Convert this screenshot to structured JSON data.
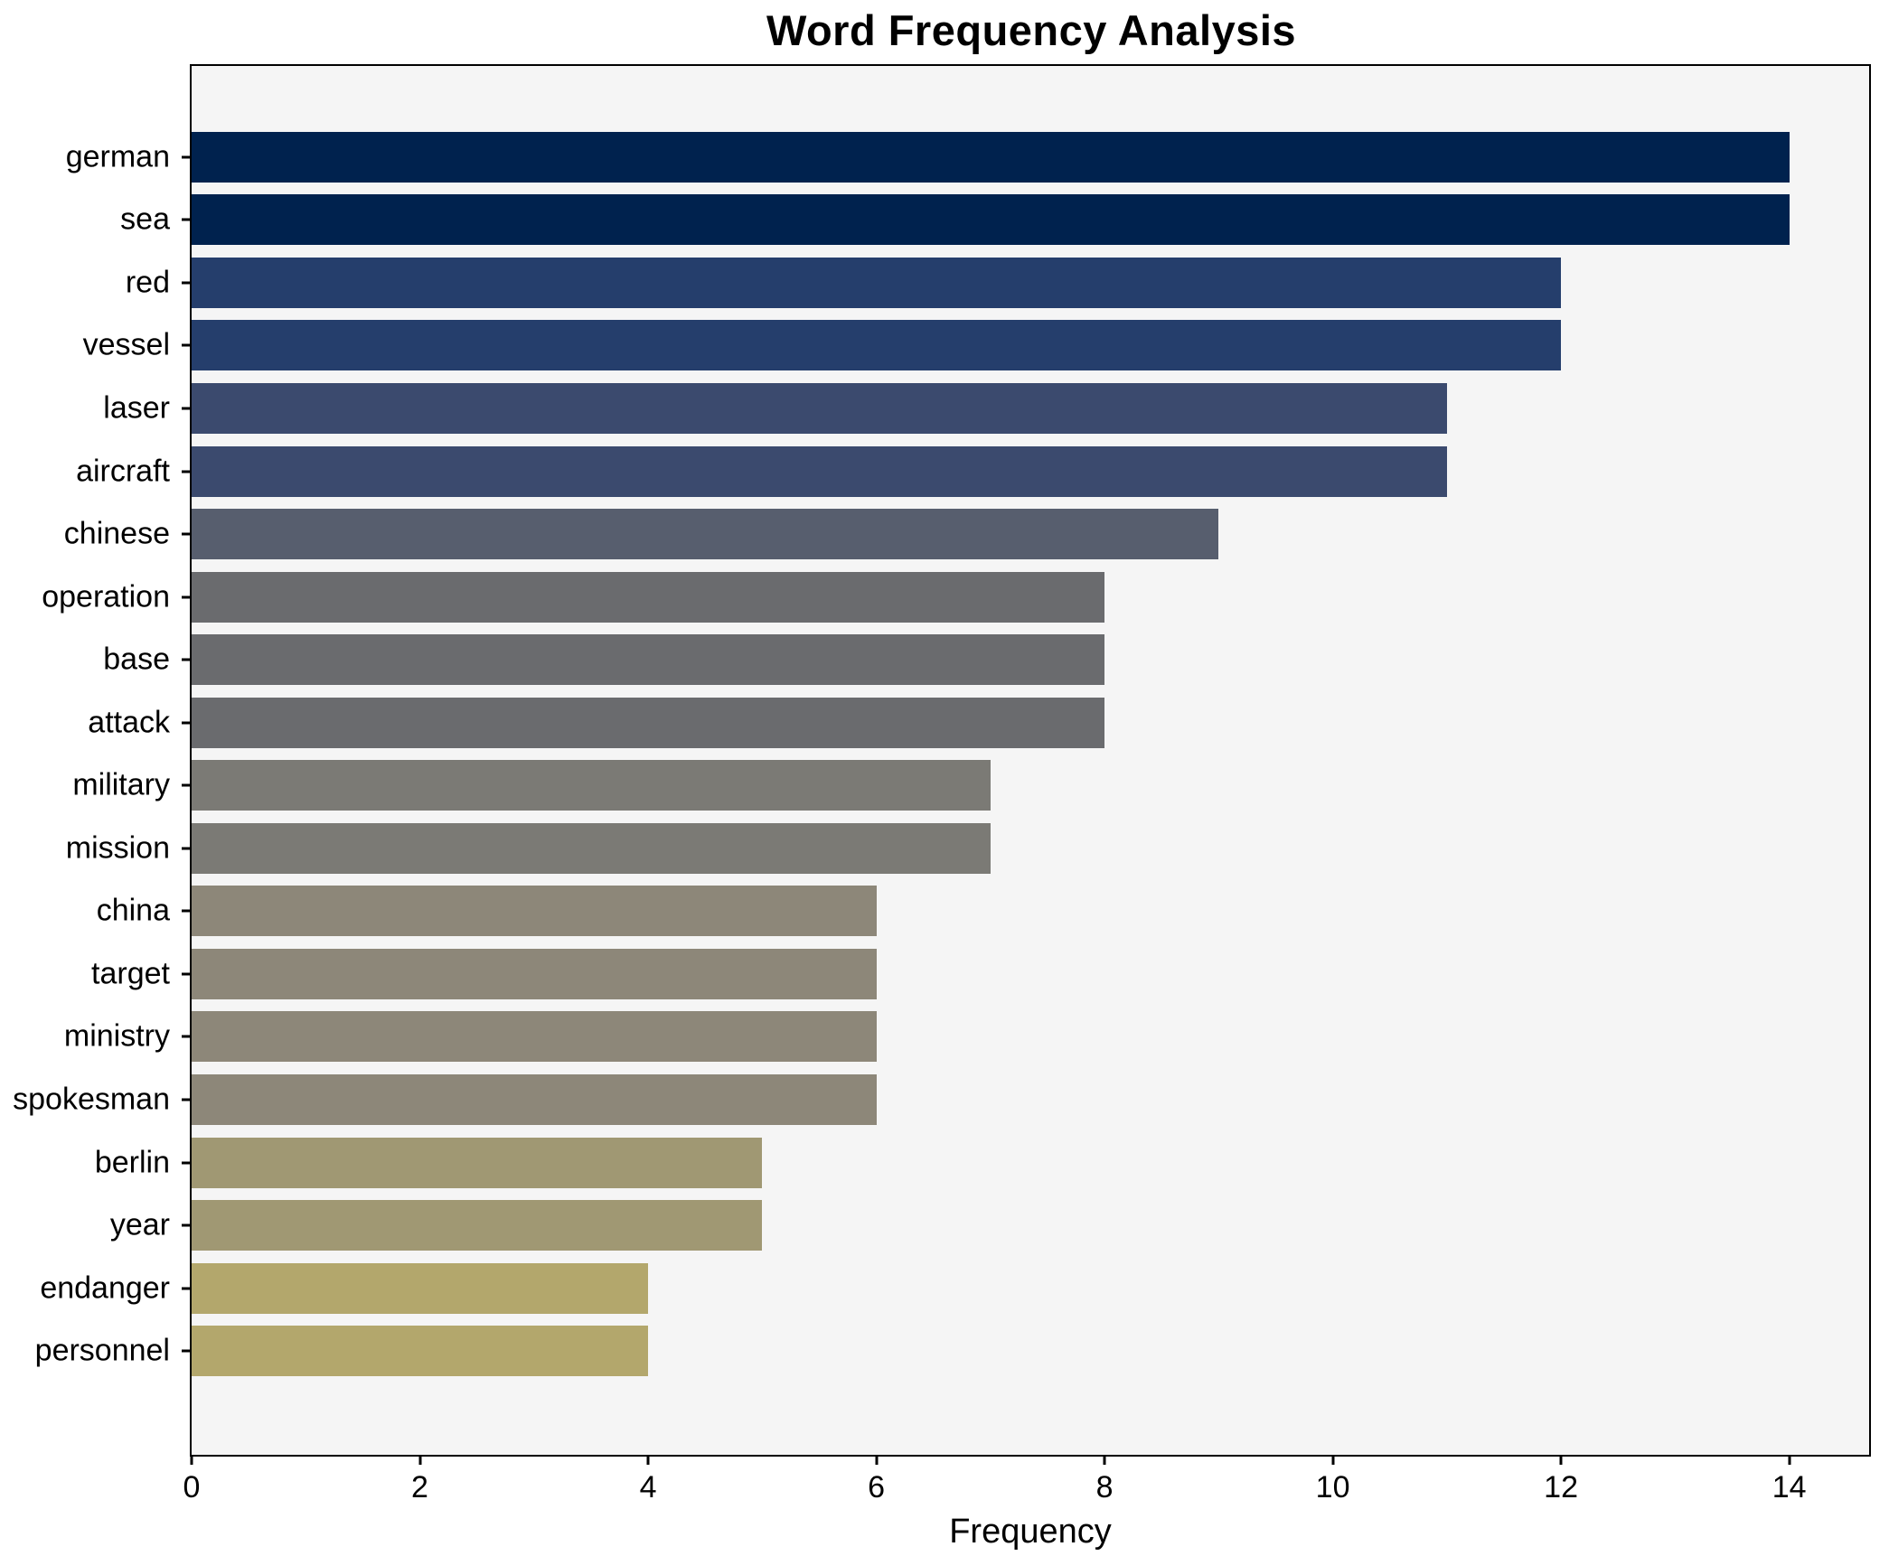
{
  "style": {
    "figure_background": "#ffffff",
    "plot_background": "#f5f5f5",
    "spine_color": "#000000",
    "text_color": "#000000"
  },
  "chart_data": {
    "type": "bar",
    "orientation": "horizontal",
    "title": "Word Frequency Analysis",
    "xlabel": "Frequency",
    "ylabel": "",
    "xlim": [
      0,
      14.7
    ],
    "xticks": [
      0,
      2,
      4,
      6,
      8,
      10,
      12,
      14
    ],
    "grid": false,
    "legend_position": "none",
    "categories": [
      "german",
      "sea",
      "red",
      "vessel",
      "laser",
      "aircraft",
      "chinese",
      "operation",
      "base",
      "attack",
      "military",
      "mission",
      "china",
      "target",
      "ministry",
      "spokesman",
      "berlin",
      "year",
      "endanger",
      "personnel"
    ],
    "values": [
      14,
      14,
      12,
      12,
      11,
      11,
      9,
      8,
      8,
      8,
      7,
      7,
      6,
      6,
      6,
      6,
      5,
      5,
      4,
      4
    ],
    "bar_colors": [
      "#00224e",
      "#00224e",
      "#253e6c",
      "#253e6c",
      "#3b4a6e",
      "#3b4a6e",
      "#575e6e",
      "#6a6b6e",
      "#6a6b6e",
      "#6a6b6e",
      "#7b7a75",
      "#7b7a75",
      "#8d8779",
      "#8d8779",
      "#8d8779",
      "#8d8779",
      "#a09873",
      "#a09873",
      "#b3a76c",
      "#b3a76c"
    ]
  }
}
